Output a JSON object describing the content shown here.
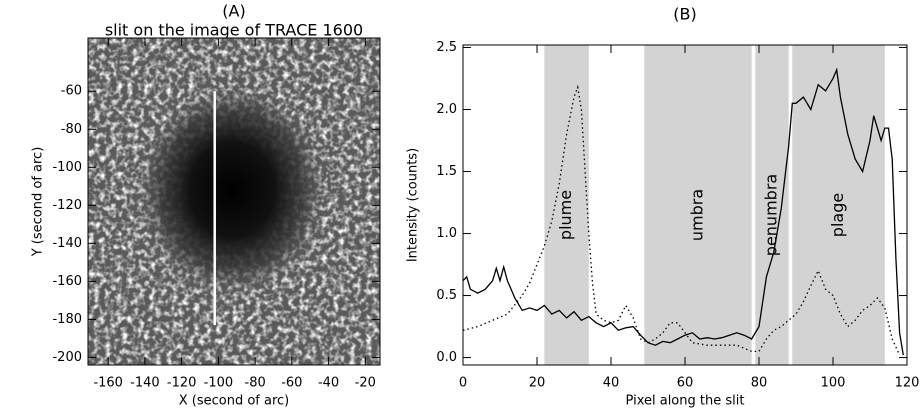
{
  "chart_data": [
    {
      "type": "image",
      "title": "(A)",
      "subtitle": "slit on the image of TRACE 1600",
      "x_label": "X (second of arc)",
      "y_label": "Y (second of arc)",
      "xlim": [
        -171,
        -12
      ],
      "ylim": [
        -204,
        -32
      ],
      "xticks": [
        -160,
        -140,
        -120,
        -100,
        -80,
        -60,
        -40,
        -20
      ],
      "yticks": [
        -200,
        -180,
        -160,
        -140,
        -120,
        -100,
        -80,
        -60
      ],
      "slit": {
        "x": -102,
        "y": [
          -183,
          -60
        ],
        "color": "#ffffff"
      }
    },
    {
      "type": "line",
      "title": "(B)",
      "x_label": "Pixel along the slit",
      "y_label": "Intensity (counts)",
      "xlim": [
        0,
        120
      ],
      "ylim": [
        -0.06,
        2.52
      ],
      "xticks": [
        0,
        20,
        40,
        60,
        80,
        100,
        120
      ],
      "yticks": [
        {
          "value": 0,
          "label": "0.0"
        },
        0.5,
        {
          "value": 1,
          "label": "1.0"
        },
        1.5,
        {
          "value": 2,
          "label": "2.0"
        },
        2.5
      ],
      "regions": [
        {
          "label": "plume",
          "range": [
            22,
            34
          ]
        },
        {
          "label": "umbra",
          "range": [
            49,
            78
          ]
        },
        {
          "label": "penumbra",
          "range": [
            79,
            88
          ]
        },
        {
          "label": "plage",
          "range": [
            89,
            114
          ]
        }
      ],
      "region_color": "#d3d3d3",
      "series": [
        {
          "color": "#000000",
          "style": "solid",
          "x": [
            0,
            1,
            2,
            4,
            6,
            8,
            9,
            10,
            11,
            12,
            13,
            14,
            16,
            18,
            20,
            22,
            24,
            26,
            28,
            30,
            32,
            34,
            36,
            38,
            40,
            42,
            44,
            46,
            48,
            50,
            52,
            54,
            56,
            58,
            60,
            62,
            64,
            66,
            68,
            70,
            72,
            74,
            76,
            78,
            80,
            82,
            84,
            86,
            88,
            89,
            90,
            92,
            94,
            96,
            98,
            100,
            101,
            102,
            104,
            106,
            108,
            110,
            111,
            112,
            113,
            114,
            115,
            116,
            117,
            118,
            119
          ],
          "values": [
            0.62,
            0.65,
            0.55,
            0.52,
            0.55,
            0.62,
            0.72,
            0.62,
            0.73,
            0.62,
            0.55,
            0.48,
            0.38,
            0.4,
            0.38,
            0.42,
            0.35,
            0.38,
            0.32,
            0.37,
            0.3,
            0.33,
            0.28,
            0.25,
            0.28,
            0.22,
            0.24,
            0.25,
            0.18,
            0.12,
            0.1,
            0.13,
            0.12,
            0.15,
            0.18,
            0.2,
            0.15,
            0.16,
            0.15,
            0.16,
            0.18,
            0.2,
            0.18,
            0.15,
            0.25,
            0.65,
            0.85,
            1.2,
            1.7,
            2.05,
            2.05,
            2.1,
            2.0,
            2.2,
            2.15,
            2.25,
            2.32,
            2.1,
            1.8,
            1.6,
            1.5,
            1.75,
            1.95,
            1.85,
            1.75,
            1.85,
            1.85,
            1.6,
            0.8,
            0.2,
            0.02
          ]
        },
        {
          "color": "#000000",
          "style": "dotted",
          "x": [
            0,
            4,
            8,
            12,
            16,
            18,
            20,
            22,
            24,
            26,
            28,
            30,
            31,
            32,
            33,
            34,
            35,
            36,
            38,
            40,
            42,
            44,
            46,
            48,
            50,
            52,
            54,
            56,
            58,
            60,
            62,
            66,
            70,
            74,
            78,
            80,
            82,
            84,
            86,
            88,
            90,
            92,
            94,
            96,
            98,
            100,
            102,
            104,
            106,
            108,
            110,
            112,
            114,
            116,
            118
          ],
          "values": [
            0.22,
            0.25,
            0.3,
            0.35,
            0.5,
            0.6,
            0.75,
            0.9,
            1.1,
            1.4,
            1.8,
            2.1,
            2.18,
            2.0,
            1.5,
            1.0,
            0.6,
            0.35,
            0.3,
            0.28,
            0.3,
            0.42,
            0.32,
            0.15,
            0.12,
            0.15,
            0.2,
            0.28,
            0.28,
            0.2,
            0.12,
            0.1,
            0.1,
            0.1,
            0.05,
            0.05,
            0.15,
            0.22,
            0.25,
            0.3,
            0.35,
            0.45,
            0.58,
            0.7,
            0.55,
            0.5,
            0.35,
            0.25,
            0.3,
            0.38,
            0.42,
            0.48,
            0.4,
            0.15,
            0.02
          ]
        }
      ]
    }
  ]
}
